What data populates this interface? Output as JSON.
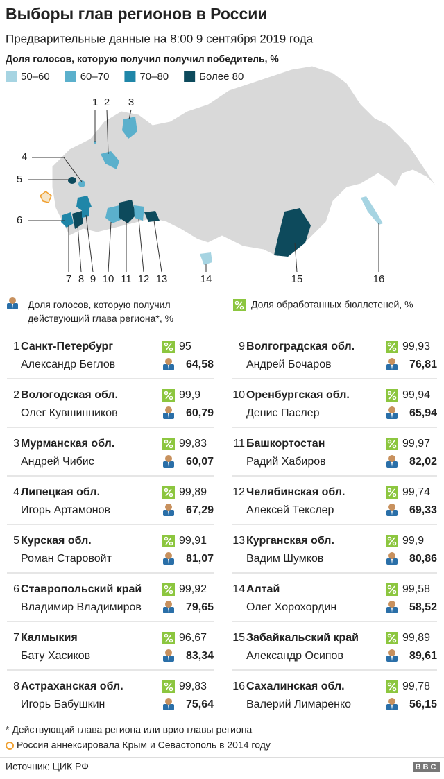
{
  "header": {
    "title": "Выборы глав регионов в России",
    "subtitle": "Предварительные данные на 8:00 9 сентября 2019 года"
  },
  "legend": {
    "title": "Доля голосов, которую получил получил победитель, %",
    "items": [
      {
        "label": "50–60",
        "color": "#a6d4e2"
      },
      {
        "label": "60–70",
        "color": "#5bb0cc"
      },
      {
        "label": "70–80",
        "color": "#1f86a8"
      },
      {
        "label": "Более 80",
        "color": "#0d4a5c"
      }
    ]
  },
  "map_labels": [
    "1",
    "2",
    "3",
    "4",
    "5",
    "6",
    "7",
    "8",
    "9",
    "10",
    "11",
    "12",
    "13",
    "14",
    "15",
    "16"
  ],
  "icon_legend": {
    "vote": "Доля голосов, которую получил действующий глава региона*, %",
    "processed": "Доля обработанных бюллетеней, %"
  },
  "entries": [
    {
      "number": "1",
      "region": "Санкт-Петербург",
      "name": "Александр Беглов",
      "processed": "95",
      "vote": "64,58"
    },
    {
      "number": "2",
      "region": "Вологодская обл.",
      "name": "Олег Кувшинников",
      "processed": "99,9",
      "vote": "60,79"
    },
    {
      "number": "3",
      "region": "Мурманская обл.",
      "name": "Андрей Чибис",
      "processed": "99,83",
      "vote": "60,07"
    },
    {
      "number": "4",
      "region": "Липецкая обл.",
      "name": "Игорь Артамонов",
      "processed": "99,89",
      "vote": "67,29"
    },
    {
      "number": "5",
      "region": "Курская обл.",
      "name": "Роман Старовойт",
      "processed": "99,91",
      "vote": "81,07"
    },
    {
      "number": "6",
      "region": "Ставропольский край",
      "name": "Владимир Владимиров",
      "processed": "99,92",
      "vote": "79,65"
    },
    {
      "number": "7",
      "region": "Калмыкия",
      "name": "Бату Хасиков",
      "processed": "96,67",
      "vote": "83,34"
    },
    {
      "number": "8",
      "region": "Астраханская обл.",
      "name": "Игорь Бабушкин",
      "processed": "99,83",
      "vote": "75,64"
    },
    {
      "number": "9",
      "region": "Волгоградская обл.",
      "name": "Андрей Бочаров",
      "processed": "99,93",
      "vote": "76,81"
    },
    {
      "number": "10",
      "region": "Оренбургская обл.",
      "name": "Денис Паслер",
      "processed": "99,94",
      "vote": "65,94"
    },
    {
      "number": "11",
      "region": "Башкортостан",
      "name": "Радий Хабиров",
      "processed": "99,97",
      "vote": "82,02"
    },
    {
      "number": "12",
      "region": "Челябинская обл.",
      "name": "Алексей Текслер",
      "processed": "99,74",
      "vote": "69,33"
    },
    {
      "number": "13",
      "region": "Курганская обл.",
      "name": "Вадим Шумков",
      "processed": "99,9",
      "vote": "80,86"
    },
    {
      "number": "14",
      "region": "Алтай",
      "name": "Олег Хорохордин",
      "processed": "99,58",
      "vote": "58,52"
    },
    {
      "number": "15",
      "region": "Забайкальский край",
      "name": "Александр Осипов",
      "processed": "99,89",
      "vote": "89,61"
    },
    {
      "number": "16",
      "region": "Сахалинская обл.",
      "name": "Валерий Лимаренко",
      "processed": "99,78",
      "vote": "56,15"
    }
  ],
  "footnotes": [
    "* Действующий глава региона или врио главы региона",
    "Россия аннексировала Крым и Севастополь в 2014 году"
  ],
  "source": "Источник: ЦИК РФ",
  "logo": "BBC"
}
